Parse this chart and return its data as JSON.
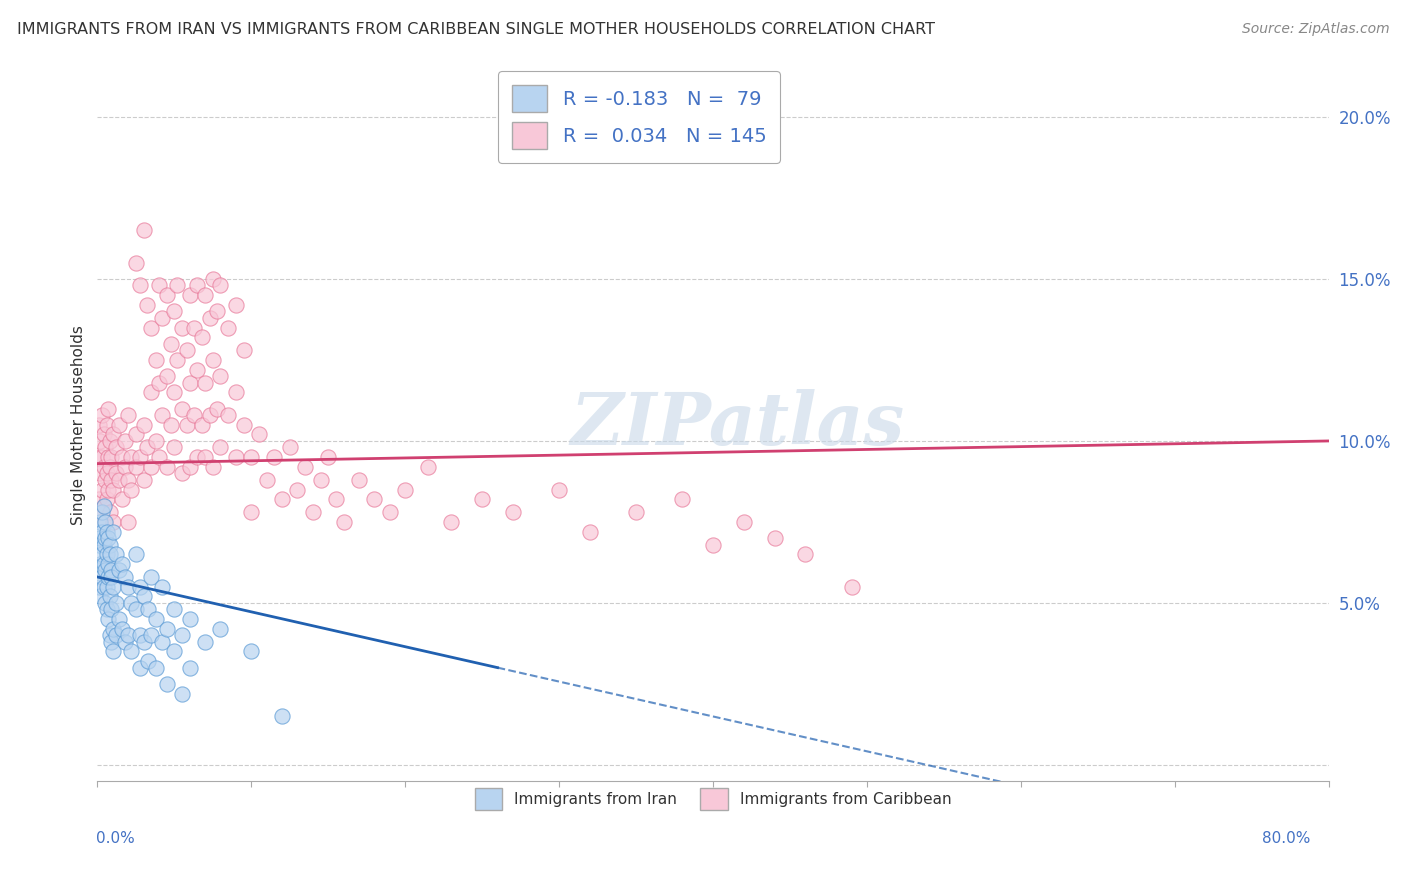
{
  "title": "IMMIGRANTS FROM IRAN VS IMMIGRANTS FROM CARIBBEAN SINGLE MOTHER HOUSEHOLDS CORRELATION CHART",
  "source": "Source: ZipAtlas.com",
  "ylabel": "Single Mother Households",
  "xlim": [
    0.0,
    0.8
  ],
  "ylim": [
    -0.005,
    0.215
  ],
  "yticks": [
    0.0,
    0.05,
    0.1,
    0.15,
    0.2
  ],
  "ytick_labels": [
    "",
    "5.0%",
    "10.0%",
    "15.0%",
    "20.0%"
  ],
  "xticks": [
    0.0,
    0.1,
    0.2,
    0.3,
    0.4,
    0.5,
    0.6,
    0.7,
    0.8
  ],
  "iran_color": "#b8d4f0",
  "iran_edge": "#5b9bd5",
  "caribbean_color": "#f8c8d8",
  "caribbean_edge": "#e87a9a",
  "iran_R": -0.183,
  "iran_N": 79,
  "caribbean_R": 0.034,
  "caribbean_N": 145,
  "trend_iran_color": "#2060b0",
  "trend_caribbean_color": "#d04070",
  "watermark": "ZIPatlas",
  "iran_scatter": [
    [
      0.001,
      0.068
    ],
    [
      0.001,
      0.072
    ],
    [
      0.001,
      0.06
    ],
    [
      0.001,
      0.055
    ],
    [
      0.002,
      0.075
    ],
    [
      0.002,
      0.062
    ],
    [
      0.002,
      0.07
    ],
    [
      0.002,
      0.052
    ],
    [
      0.003,
      0.078
    ],
    [
      0.003,
      0.065
    ],
    [
      0.003,
      0.058
    ],
    [
      0.003,
      0.072
    ],
    [
      0.004,
      0.08
    ],
    [
      0.004,
      0.068
    ],
    [
      0.004,
      0.055
    ],
    [
      0.004,
      0.062
    ],
    [
      0.005,
      0.075
    ],
    [
      0.005,
      0.06
    ],
    [
      0.005,
      0.07
    ],
    [
      0.005,
      0.05
    ],
    [
      0.006,
      0.065
    ],
    [
      0.006,
      0.055
    ],
    [
      0.006,
      0.072
    ],
    [
      0.006,
      0.048
    ],
    [
      0.007,
      0.07
    ],
    [
      0.007,
      0.058
    ],
    [
      0.007,
      0.045
    ],
    [
      0.007,
      0.062
    ],
    [
      0.008,
      0.068
    ],
    [
      0.008,
      0.052
    ],
    [
      0.008,
      0.04
    ],
    [
      0.008,
      0.065
    ],
    [
      0.009,
      0.06
    ],
    [
      0.009,
      0.048
    ],
    [
      0.009,
      0.038
    ],
    [
      0.009,
      0.058
    ],
    [
      0.01,
      0.072
    ],
    [
      0.01,
      0.055
    ],
    [
      0.01,
      0.042
    ],
    [
      0.01,
      0.035
    ],
    [
      0.012,
      0.065
    ],
    [
      0.012,
      0.05
    ],
    [
      0.012,
      0.04
    ],
    [
      0.014,
      0.06
    ],
    [
      0.014,
      0.045
    ],
    [
      0.016,
      0.062
    ],
    [
      0.016,
      0.042
    ],
    [
      0.018,
      0.058
    ],
    [
      0.018,
      0.038
    ],
    [
      0.02,
      0.055
    ],
    [
      0.02,
      0.04
    ],
    [
      0.022,
      0.05
    ],
    [
      0.022,
      0.035
    ],
    [
      0.025,
      0.065
    ],
    [
      0.025,
      0.048
    ],
    [
      0.028,
      0.055
    ],
    [
      0.028,
      0.04
    ],
    [
      0.028,
      0.03
    ],
    [
      0.03,
      0.052
    ],
    [
      0.03,
      0.038
    ],
    [
      0.033,
      0.048
    ],
    [
      0.033,
      0.032
    ],
    [
      0.035,
      0.058
    ],
    [
      0.035,
      0.04
    ],
    [
      0.038,
      0.045
    ],
    [
      0.038,
      0.03
    ],
    [
      0.042,
      0.055
    ],
    [
      0.042,
      0.038
    ],
    [
      0.045,
      0.042
    ],
    [
      0.045,
      0.025
    ],
    [
      0.05,
      0.048
    ],
    [
      0.05,
      0.035
    ],
    [
      0.055,
      0.04
    ],
    [
      0.055,
      0.022
    ],
    [
      0.06,
      0.045
    ],
    [
      0.06,
      0.03
    ],
    [
      0.07,
      0.038
    ],
    [
      0.08,
      0.042
    ],
    [
      0.1,
      0.035
    ],
    [
      0.12,
      0.015
    ]
  ],
  "caribbean_scatter": [
    [
      0.001,
      0.095
    ],
    [
      0.001,
      0.082
    ],
    [
      0.001,
      0.105
    ],
    [
      0.002,
      0.09
    ],
    [
      0.002,
      0.1
    ],
    [
      0.002,
      0.078
    ],
    [
      0.003,
      0.095
    ],
    [
      0.003,
      0.085
    ],
    [
      0.003,
      0.108
    ],
    [
      0.004,
      0.092
    ],
    [
      0.004,
      0.102
    ],
    [
      0.004,
      0.08
    ],
    [
      0.005,
      0.098
    ],
    [
      0.005,
      0.088
    ],
    [
      0.005,
      0.075
    ],
    [
      0.006,
      0.105
    ],
    [
      0.006,
      0.09
    ],
    [
      0.006,
      0.082
    ],
    [
      0.007,
      0.095
    ],
    [
      0.007,
      0.085
    ],
    [
      0.007,
      0.11
    ],
    [
      0.008,
      0.1
    ],
    [
      0.008,
      0.092
    ],
    [
      0.008,
      0.078
    ],
    [
      0.009,
      0.095
    ],
    [
      0.009,
      0.088
    ],
    [
      0.01,
      0.102
    ],
    [
      0.01,
      0.085
    ],
    [
      0.01,
      0.075
    ],
    [
      0.012,
      0.098
    ],
    [
      0.012,
      0.09
    ],
    [
      0.014,
      0.105
    ],
    [
      0.014,
      0.088
    ],
    [
      0.016,
      0.095
    ],
    [
      0.016,
      0.082
    ],
    [
      0.018,
      0.1
    ],
    [
      0.018,
      0.092
    ],
    [
      0.02,
      0.108
    ],
    [
      0.02,
      0.088
    ],
    [
      0.02,
      0.075
    ],
    [
      0.022,
      0.095
    ],
    [
      0.022,
      0.085
    ],
    [
      0.025,
      0.155
    ],
    [
      0.025,
      0.102
    ],
    [
      0.025,
      0.092
    ],
    [
      0.028,
      0.148
    ],
    [
      0.028,
      0.095
    ],
    [
      0.03,
      0.165
    ],
    [
      0.03,
      0.105
    ],
    [
      0.03,
      0.088
    ],
    [
      0.032,
      0.142
    ],
    [
      0.032,
      0.098
    ],
    [
      0.035,
      0.135
    ],
    [
      0.035,
      0.115
    ],
    [
      0.035,
      0.092
    ],
    [
      0.038,
      0.125
    ],
    [
      0.038,
      0.1
    ],
    [
      0.04,
      0.148
    ],
    [
      0.04,
      0.118
    ],
    [
      0.04,
      0.095
    ],
    [
      0.042,
      0.138
    ],
    [
      0.042,
      0.108
    ],
    [
      0.045,
      0.145
    ],
    [
      0.045,
      0.12
    ],
    [
      0.045,
      0.092
    ],
    [
      0.048,
      0.13
    ],
    [
      0.048,
      0.105
    ],
    [
      0.05,
      0.14
    ],
    [
      0.05,
      0.115
    ],
    [
      0.05,
      0.098
    ],
    [
      0.052,
      0.148
    ],
    [
      0.052,
      0.125
    ],
    [
      0.055,
      0.135
    ],
    [
      0.055,
      0.11
    ],
    [
      0.055,
      0.09
    ],
    [
      0.058,
      0.128
    ],
    [
      0.058,
      0.105
    ],
    [
      0.06,
      0.145
    ],
    [
      0.06,
      0.118
    ],
    [
      0.06,
      0.092
    ],
    [
      0.063,
      0.135
    ],
    [
      0.063,
      0.108
    ],
    [
      0.065,
      0.148
    ],
    [
      0.065,
      0.122
    ],
    [
      0.065,
      0.095
    ],
    [
      0.068,
      0.132
    ],
    [
      0.068,
      0.105
    ],
    [
      0.07,
      0.145
    ],
    [
      0.07,
      0.118
    ],
    [
      0.07,
      0.095
    ],
    [
      0.073,
      0.138
    ],
    [
      0.073,
      0.108
    ],
    [
      0.075,
      0.15
    ],
    [
      0.075,
      0.125
    ],
    [
      0.075,
      0.092
    ],
    [
      0.078,
      0.14
    ],
    [
      0.078,
      0.11
    ],
    [
      0.08,
      0.148
    ],
    [
      0.08,
      0.12
    ],
    [
      0.08,
      0.098
    ],
    [
      0.085,
      0.135
    ],
    [
      0.085,
      0.108
    ],
    [
      0.09,
      0.142
    ],
    [
      0.09,
      0.115
    ],
    [
      0.09,
      0.095
    ],
    [
      0.095,
      0.128
    ],
    [
      0.095,
      0.105
    ],
    [
      0.1,
      0.095
    ],
    [
      0.1,
      0.078
    ],
    [
      0.105,
      0.102
    ],
    [
      0.11,
      0.088
    ],
    [
      0.115,
      0.095
    ],
    [
      0.12,
      0.082
    ],
    [
      0.125,
      0.098
    ],
    [
      0.13,
      0.085
    ],
    [
      0.135,
      0.092
    ],
    [
      0.14,
      0.078
    ],
    [
      0.145,
      0.088
    ],
    [
      0.15,
      0.095
    ],
    [
      0.155,
      0.082
    ],
    [
      0.16,
      0.075
    ],
    [
      0.17,
      0.088
    ],
    [
      0.18,
      0.082
    ],
    [
      0.19,
      0.078
    ],
    [
      0.2,
      0.085
    ],
    [
      0.215,
      0.092
    ],
    [
      0.23,
      0.075
    ],
    [
      0.25,
      0.082
    ],
    [
      0.27,
      0.078
    ],
    [
      0.3,
      0.085
    ],
    [
      0.32,
      0.072
    ],
    [
      0.35,
      0.078
    ],
    [
      0.38,
      0.082
    ],
    [
      0.4,
      0.068
    ],
    [
      0.42,
      0.075
    ],
    [
      0.44,
      0.07
    ],
    [
      0.46,
      0.065
    ],
    [
      0.49,
      0.055
    ]
  ],
  "iran_trend_x0": 0.0,
  "iran_trend_y0": 0.058,
  "iran_trend_x1": 0.26,
  "iran_trend_y1": 0.03,
  "iran_trend_x2_dashed": 0.26,
  "iran_trend_x3_dashed": 0.8,
  "caribbean_trend_x0": 0.0,
  "caribbean_trend_y0": 0.093,
  "caribbean_trend_x1": 0.8,
  "caribbean_trend_y1": 0.1
}
